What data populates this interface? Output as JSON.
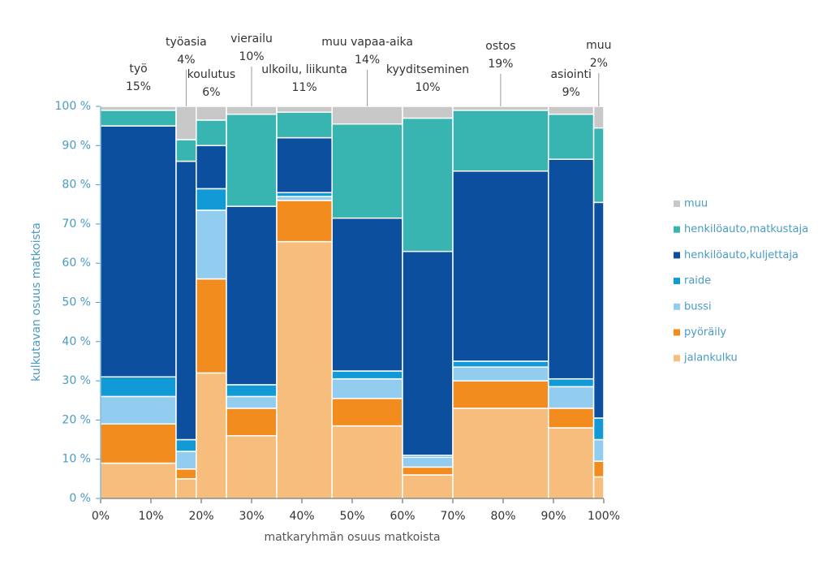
{
  "chart_data": {
    "type": "marimekko",
    "y_label": "kulkutavan osuus matkoista",
    "x_label": "matkaryhmän osuus matkoista",
    "categories": [
      "työ",
      "työasia",
      "koulutus",
      "vierailu",
      "ulkoilu, liikunta",
      "muu vapaa-aika",
      "kyyditseminen",
      "ostos",
      "asiointi",
      "muu"
    ],
    "widths": [
      15,
      4,
      6,
      10,
      11,
      14,
      10,
      19,
      9,
      2
    ],
    "width_labels": [
      "15%",
      "4%",
      "6%",
      "10%",
      "11%",
      "14%",
      "10%",
      "19%",
      "9%",
      "2%"
    ],
    "series": [
      {
        "name": "jalankulku",
        "color": "#f7bd7c",
        "values": [
          9,
          5,
          32,
          16,
          65.5,
          18.5,
          6,
          23,
          18,
          5.5
        ]
      },
      {
        "name": "pyöräily",
        "color": "#f28c1e",
        "values": [
          10,
          2.5,
          24,
          7,
          10.5,
          7,
          2,
          7,
          5,
          4
        ]
      },
      {
        "name": "bussi",
        "color": "#92ccee",
        "values": [
          7,
          4.5,
          17.5,
          3,
          1,
          5,
          2.5,
          3.5,
          5.5,
          5.5
        ]
      },
      {
        "name": "raide",
        "color": "#119ad6",
        "values": [
          5,
          3,
          5.5,
          3,
          1,
          2,
          0.5,
          1.5,
          2,
          5.5
        ]
      },
      {
        "name": "henkilöauto,kuljettaja",
        "color": "#0b4f9e",
        "values": [
          64,
          71,
          11,
          45.5,
          14,
          39,
          52,
          48.5,
          56,
          55
        ]
      },
      {
        "name": "henkilöauto,matkustaja",
        "color": "#38b5b0",
        "values": [
          4,
          5.5,
          6.5,
          23.5,
          6.5,
          24,
          34,
          15.5,
          11.5,
          19
        ]
      },
      {
        "name": "muu",
        "color": "#c8c8c8",
        "values": [
          1,
          8.5,
          3.5,
          2,
          1.5,
          4.5,
          3,
          1,
          2,
          5.5
        ]
      }
    ],
    "xlim": [
      0,
      100
    ],
    "xticks": [
      {
        "value": 0,
        "label": "0%"
      },
      {
        "value": 10,
        "label": "10%"
      },
      {
        "value": 20,
        "label": "20%"
      },
      {
        "value": 30,
        "label": "30%"
      },
      {
        "value": 40,
        "label": "40%"
      },
      {
        "value": 50,
        "label": "50%"
      },
      {
        "value": 60,
        "label": "60%"
      },
      {
        "value": 70,
        "label": "70%"
      },
      {
        "value": 80,
        "label": "80%"
      },
      {
        "value": 90,
        "label": "90%"
      },
      {
        "value": 100,
        "label": "100%"
      }
    ],
    "ylim": [
      0,
      100
    ],
    "yticks": [
      {
        "value": 0,
        "label": "0 %"
      },
      {
        "value": 10,
        "label": "10 %"
      },
      {
        "value": 20,
        "label": "20 %"
      },
      {
        "value": 30,
        "label": "30 %"
      },
      {
        "value": 40,
        "label": "40 %"
      },
      {
        "value": 50,
        "label": "50 %"
      },
      {
        "value": 60,
        "label": "60 %"
      },
      {
        "value": 70,
        "label": "70 %"
      },
      {
        "value": 80,
        "label": "80 %"
      },
      {
        "value": 90,
        "label": "90 %"
      },
      {
        "value": 100,
        "label": "100 %"
      }
    ],
    "legend": "right"
  }
}
